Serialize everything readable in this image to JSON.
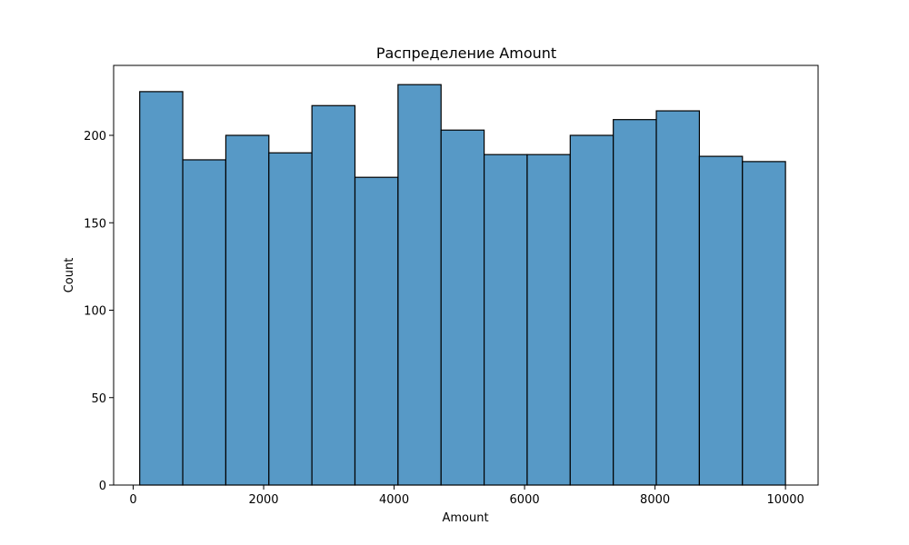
{
  "chart_data": {
    "type": "histogram",
    "title": "Распределение Amount",
    "xlabel": "Amount",
    "ylabel": "Count",
    "xlim": [
      -300,
      10500
    ],
    "ylim": [
      0,
      240
    ],
    "xticks": [
      0,
      2000,
      4000,
      6000,
      8000,
      10000
    ],
    "yticks": [
      0,
      50,
      100,
      150,
      200
    ],
    "bins": [
      {
        "start": 100,
        "end": 760,
        "count": 225
      },
      {
        "start": 760,
        "end": 1420,
        "count": 186
      },
      {
        "start": 1420,
        "end": 2080,
        "count": 200
      },
      {
        "start": 2080,
        "end": 2740,
        "count": 190
      },
      {
        "start": 2740,
        "end": 3400,
        "count": 217
      },
      {
        "start": 3400,
        "end": 4060,
        "count": 176
      },
      {
        "start": 4060,
        "end": 4720,
        "count": 229
      },
      {
        "start": 4720,
        "end": 5380,
        "count": 203
      },
      {
        "start": 5380,
        "end": 6040,
        "count": 189
      },
      {
        "start": 6040,
        "end": 6700,
        "count": 189
      },
      {
        "start": 6700,
        "end": 7360,
        "count": 200
      },
      {
        "start": 7360,
        "end": 8020,
        "count": 209
      },
      {
        "start": 8020,
        "end": 8680,
        "count": 214
      },
      {
        "start": 8680,
        "end": 9340,
        "count": 188
      },
      {
        "start": 9340,
        "end": 10000,
        "count": 185
      }
    ],
    "bar_color": "#5799c6",
    "edge_color": "#000000",
    "grid": false,
    "legend": false
  }
}
